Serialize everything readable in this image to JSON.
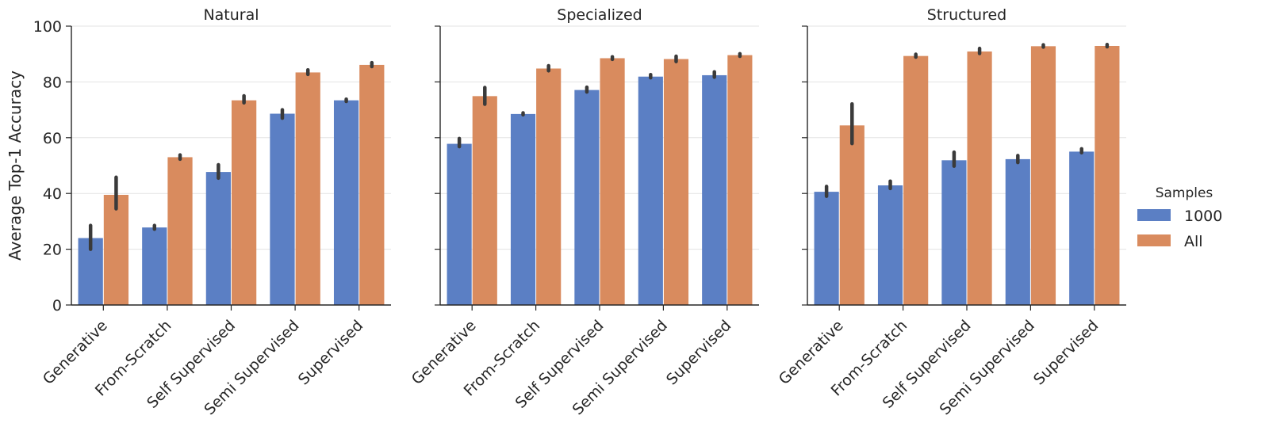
{
  "chart_data": {
    "type": "bar",
    "ylabel": "Average Top-1 Accuracy",
    "ylim": [
      0,
      100
    ],
    "yticks": [
      0,
      20,
      40,
      60,
      80,
      100
    ],
    "grid": "horizontal",
    "legend": {
      "title": "Samples",
      "placement": "right",
      "entries": [
        {
          "label": "1000",
          "color": "#5b7fc4"
        },
        {
          "label": "All",
          "color": "#d98b5e"
        }
      ]
    },
    "categories": [
      "Generative",
      "From-Scratch",
      "Self Supervised",
      "Semi Supervised",
      "Supervised"
    ],
    "panels": [
      {
        "title": "Natural",
        "series": [
          {
            "name": "1000",
            "values": [
              24,
              27.8,
              47.7,
              68.6,
              73.4
            ],
            "err_low": [
              20,
              27.2,
              45.5,
              67,
              73
            ],
            "err_high": [
              28.5,
              28.5,
              50.3,
              70,
              73.8
            ]
          },
          {
            "name": "All",
            "values": [
              39.5,
              53,
              73.4,
              83.4,
              86.1
            ],
            "err_low": [
              34.5,
              52.3,
              72.5,
              82.7,
              85.5
            ],
            "err_high": [
              45.8,
              53.8,
              75,
              84.3,
              86.9
            ]
          }
        ]
      },
      {
        "title": "Specialized",
        "series": [
          {
            "name": "1000",
            "values": [
              57.8,
              68.5,
              77.1,
              81.9,
              82.4
            ],
            "err_low": [
              56.8,
              68.2,
              76.4,
              81.5,
              81.7
            ],
            "err_high": [
              59.7,
              68.9,
              78.1,
              82.6,
              83.6
            ]
          },
          {
            "name": "All",
            "values": [
              74.9,
              84.8,
              88.5,
              88.2,
              89.6
            ],
            "err_low": [
              72,
              84,
              88.1,
              87.3,
              89.2
            ],
            "err_high": [
              78,
              85.8,
              89,
              89.2,
              90.1
            ]
          }
        ]
      },
      {
        "title": "Structured",
        "series": [
          {
            "name": "1000",
            "values": [
              40.6,
              42.9,
              51.9,
              52.3,
              55
            ],
            "err_low": [
              39,
              41.8,
              49.8,
              51.1,
              54.6
            ],
            "err_high": [
              42.5,
              44.4,
              54.8,
              53.6,
              56
            ]
          },
          {
            "name": "All",
            "values": [
              64.4,
              89.3,
              90.9,
              92.8,
              92.9
            ],
            "err_low": [
              57.9,
              88.9,
              90.2,
              92.5,
              92.6
            ],
            "err_high": [
              72.1,
              89.9,
              92,
              93.3,
              93.4
            ]
          }
        ]
      }
    ]
  }
}
